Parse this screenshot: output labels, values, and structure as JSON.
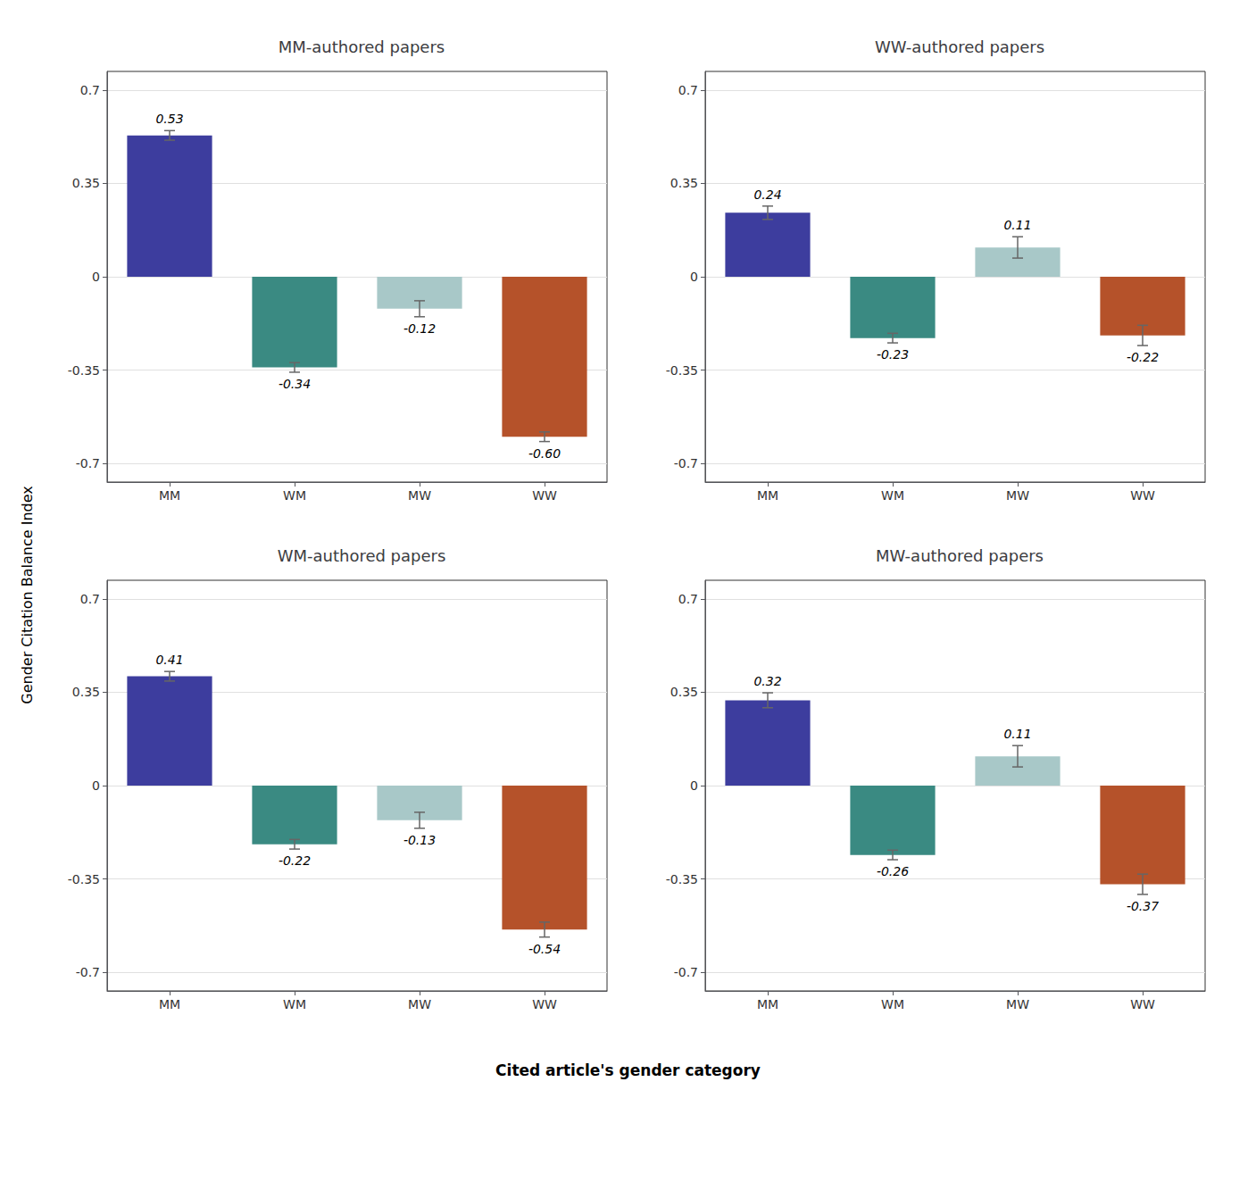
{
  "ylabel": "Gender Citation Balance Index",
  "xlabel": "Cited article's gender category",
  "chart_data": [
    {
      "type": "bar",
      "title": "MM-authored papers",
      "categories": [
        "MM",
        "WM",
        "MW",
        "WW"
      ],
      "values": [
        0.53,
        -0.34,
        -0.12,
        -0.6
      ],
      "value_labels": [
        "0.53",
        "-0.34",
        "-0.12",
        "-0.60"
      ],
      "errors": [
        0.018,
        0.018,
        0.03,
        0.018
      ],
      "colors": [
        "#3d3d9e",
        "#3a8a82",
        "#a8c8c8",
        "#b5522a"
      ],
      "ylim": [
        -0.77,
        0.77
      ],
      "yticks": [
        -0.7,
        -0.35,
        0,
        0.35,
        0.7
      ],
      "grid": true,
      "data_labels": true
    },
    {
      "type": "bar",
      "title": "WW-authored papers",
      "categories": [
        "MM",
        "WM",
        "MW",
        "WW"
      ],
      "values": [
        0.24,
        -0.23,
        0.11,
        -0.22
      ],
      "value_labels": [
        "0.24",
        "-0.23",
        "0.11",
        "-0.22"
      ],
      "errors": [
        0.025,
        0.018,
        0.04,
        0.038
      ],
      "colors": [
        "#3d3d9e",
        "#3a8a82",
        "#a8c8c8",
        "#b5522a"
      ],
      "ylim": [
        -0.77,
        0.77
      ],
      "yticks": [
        -0.7,
        -0.35,
        0,
        0.35,
        0.7
      ],
      "grid": true,
      "data_labels": true
    },
    {
      "type": "bar",
      "title": "WM-authored papers",
      "categories": [
        "MM",
        "WM",
        "MW",
        "WW"
      ],
      "values": [
        0.41,
        -0.22,
        -0.13,
        -0.54
      ],
      "value_labels": [
        "0.41",
        "-0.22",
        "-0.13",
        "-0.54"
      ],
      "errors": [
        0.018,
        0.018,
        0.03,
        0.028
      ],
      "colors": [
        "#3d3d9e",
        "#3a8a82",
        "#a8c8c8",
        "#b5522a"
      ],
      "ylim": [
        -0.77,
        0.77
      ],
      "yticks": [
        -0.7,
        -0.35,
        0,
        0.35,
        0.7
      ],
      "grid": true,
      "data_labels": true
    },
    {
      "type": "bar",
      "title": "MW-authored papers",
      "categories": [
        "MM",
        "WM",
        "MW",
        "WW"
      ],
      "values": [
        0.32,
        -0.26,
        0.11,
        -0.37
      ],
      "value_labels": [
        "0.32",
        "-0.26",
        "0.11",
        "-0.37"
      ],
      "errors": [
        0.028,
        0.018,
        0.04,
        0.038
      ],
      "colors": [
        "#3d3d9e",
        "#3a8a82",
        "#a8c8c8",
        "#b5522a"
      ],
      "ylim": [
        -0.77,
        0.77
      ],
      "yticks": [
        -0.7,
        -0.35,
        0,
        0.35,
        0.7
      ],
      "grid": true,
      "data_labels": true
    }
  ]
}
